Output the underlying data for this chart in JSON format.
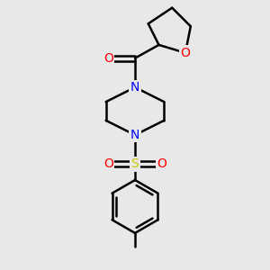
{
  "bg_color": "#e8e8e8",
  "bond_color": "#000000",
  "bond_width": 1.8,
  "N_color": "#0000ff",
  "O_color": "#ff0000",
  "S_color": "#cccc00",
  "font_size": 10,
  "figsize": [
    3.0,
    3.0
  ],
  "dpi": 100,
  "xlim": [
    0,
    10
  ],
  "ylim": [
    0,
    10
  ]
}
